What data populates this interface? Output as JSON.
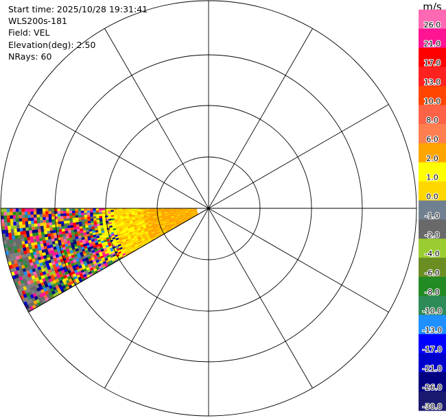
{
  "header": {
    "start_time": "Start time: 2025/10/28 19:31:41",
    "instrument": "WLS200s-181",
    "field": "Field: VEL",
    "elevation": "Elevation(deg): 2.50",
    "nrays": "NRays: 60"
  },
  "chart_data": {
    "type": "heatmap",
    "subtype": "radar-ppi",
    "field": "VEL",
    "units": "m/s",
    "elevation_deg": 2.5,
    "nrays": 60,
    "range_rings": 4,
    "spokes_deg": 30,
    "sector_azimuth_deg": [
      240,
      270
    ],
    "colorbar": {
      "label": "m/s",
      "ticks": [
        "26.0",
        "21.0",
        "17.0",
        "13.0",
        "10.0",
        "8.0",
        "6.0",
        "2.0",
        "1.0",
        "0.0",
        "-1.0",
        "-2.0",
        "-4.0",
        "-6.0",
        "-8.0",
        "-10.0",
        "-13.0",
        "-17.0",
        "-21.0",
        "-26.0",
        "-30.0"
      ],
      "colors": [
        "#ff69b4",
        "#ff1493",
        "#ff0000",
        "#ff2020",
        "#ff4500",
        "#ff6347",
        "#ff7f50",
        "#ffa500",
        "#ffff00",
        "#ffd700",
        "#708090",
        "#696969",
        "#9acd32",
        "#6b8e23",
        "#228b22",
        "#2e8b57",
        "#1e90ff",
        "#0000ff",
        "#0000cd",
        "#000080",
        "#191970"
      ]
    }
  }
}
